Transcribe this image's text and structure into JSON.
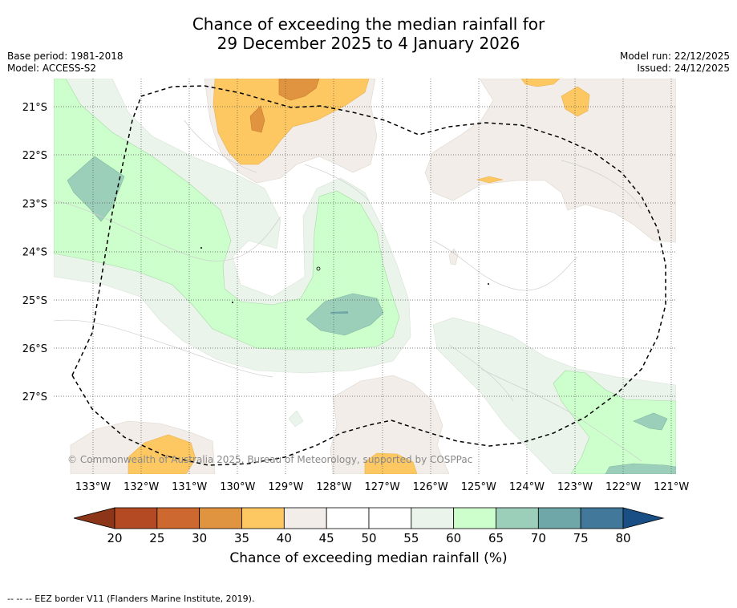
{
  "header": {
    "title_line1": "Chance of exceeding the median rainfall for",
    "title_line2": "29 December 2025 to 4 January 2026",
    "base_period": "Base period: 1981-2018",
    "model": "Model: ACCESS-S2",
    "model_run": "Model run: 22/12/2025",
    "issued": "Issued: 24/12/2025"
  },
  "map": {
    "lon_labels": [
      "133°W",
      "132°W",
      "131°W",
      "130°W",
      "129°W",
      "128°W",
      "127°W",
      "126°W",
      "125°W",
      "124°W",
      "123°W",
      "122°W",
      "121°W"
    ],
    "lat_labels": [
      "21°S",
      "22°S",
      "23°S",
      "24°S",
      "25°S",
      "26°S",
      "27°S"
    ],
    "copyright": "© Commonwealth of Australia 2025, Bureau of Meteorology, supported by COSPPac"
  },
  "colorbar": {
    "ticks": [
      "20",
      "25",
      "30",
      "35",
      "40",
      "45",
      "50",
      "55",
      "60",
      "65",
      "70",
      "75",
      "80"
    ],
    "colors": [
      "#b34a24",
      "#cd6930",
      "#e0943f",
      "#fdc862",
      "#f2ede8",
      "#ffffff",
      "#ffffff",
      "#eaf4ea",
      "#ccffcc",
      "#9ccfb9",
      "#6fa7a8",
      "#42789a"
    ],
    "under_color": "#8c3518",
    "over_color": "#1a4f86",
    "label": "Chance of exceeding median rainfall (%)"
  },
  "footnote": "--  --  -- EEZ border V11 (Flanders Marine Institute, 2019)."
}
